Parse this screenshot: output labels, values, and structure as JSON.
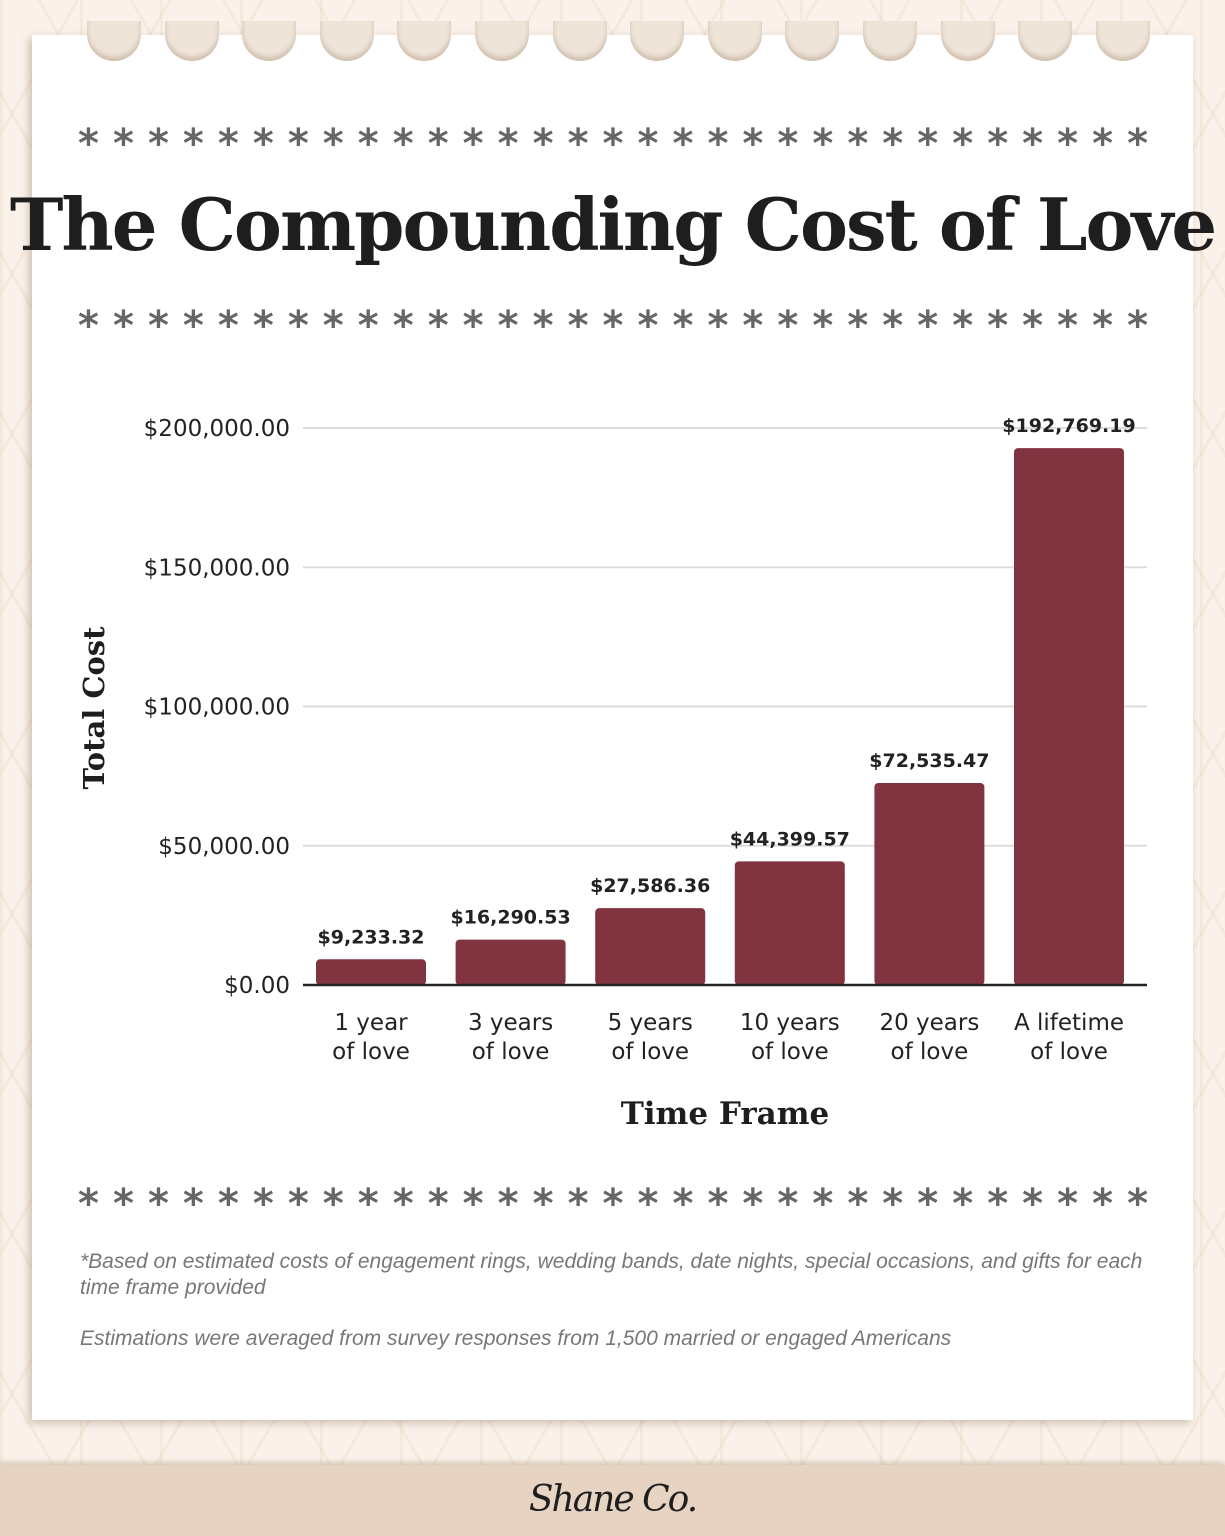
{
  "title": "The Compounding Cost of Love",
  "stars": "*",
  "chart_data": {
    "type": "bar",
    "categories": [
      [
        "1 year",
        "of love"
      ],
      [
        "3 years",
        "of love"
      ],
      [
        "5 years",
        "of love"
      ],
      [
        "10 years",
        "of love"
      ],
      [
        "20 years",
        "of love"
      ],
      [
        "A lifetime",
        "of love"
      ]
    ],
    "values": [
      9233.32,
      16290.53,
      27586.36,
      44399.57,
      72535.47,
      192769.19
    ],
    "data_labels": [
      "$9,233.32",
      "$16,290.53",
      "$27,586.36",
      "$44,399.57",
      "$72,535.47",
      "$192,769.19"
    ],
    "xlabel": "Time Frame",
    "ylabel": "Total Cost",
    "ylim": [
      0,
      200000
    ],
    "yticks": [
      0,
      50000,
      100000,
      150000,
      200000
    ],
    "ytick_labels": [
      "$0.00",
      "$50,000.00",
      "$100,000.00",
      "$150,000.00",
      "$200,000.00"
    ],
    "grid": true,
    "bar_color": "#823340"
  },
  "notes": [
    "*Based on estimated costs of engagement rings, wedding bands, date nights, special occasions, and gifts for each time frame provided",
    "Estimations were averaged from survey responses from 1,500 married or engaged Americans"
  ],
  "footer": {
    "logo": "Shane Co."
  }
}
